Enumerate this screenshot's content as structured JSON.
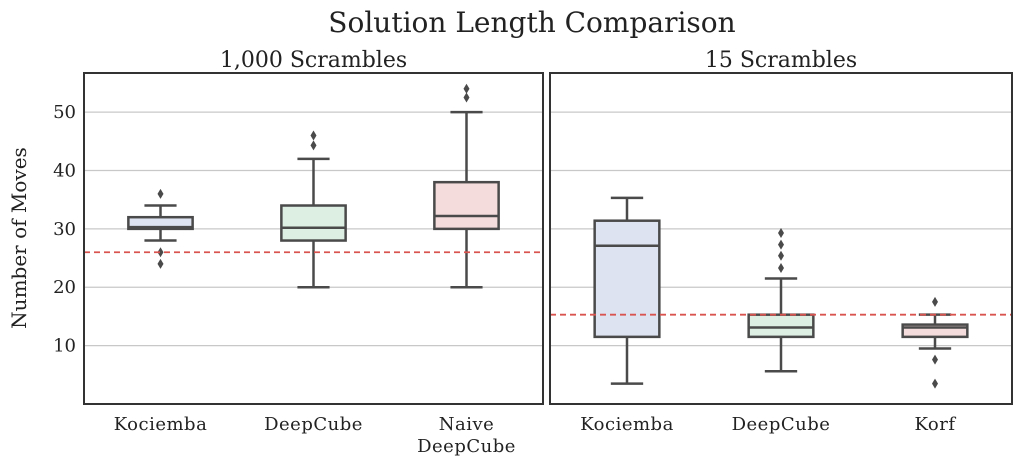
{
  "title": "Solution Length Comparison",
  "chart_data": [
    {
      "type": "box",
      "subtitle": "1,000 Scrambles",
      "y_label": "Number of Moves",
      "categories": [
        "Kociemba",
        "DeepCube",
        "Naive\nDeepCube"
      ],
      "colors": [
        "#dde3f0",
        "#ddeee3",
        "#f5dcdc"
      ],
      "boxes": [
        {
          "whislo": 28,
          "q1": 30,
          "med": 30.3,
          "q3": 32,
          "whishi": 34,
          "fliers": [
            36,
            26,
            24
          ]
        },
        {
          "whislo": 20,
          "q1": 28,
          "med": 30.2,
          "q3": 34,
          "whishi": 42,
          "fliers": [
            44.3,
            46
          ]
        },
        {
          "whislo": 20,
          "q1": 30,
          "med": 32.2,
          "q3": 38,
          "whishi": 50,
          "fliers": [
            52.5,
            54
          ]
        }
      ],
      "reference_line": {
        "value": 26,
        "color": "#d9534f"
      },
      "ylim": [
        0,
        56.7
      ],
      "yticks": [
        10,
        20,
        30,
        40,
        50
      ],
      "ytick_labels": true,
      "grid": true
    },
    {
      "type": "box",
      "subtitle": "15 Scrambles",
      "categories": [
        "Kociemba",
        "DeepCube",
        "Korf"
      ],
      "colors": [
        "#dde3f0",
        "#ddeee3",
        "#f5dcdc"
      ],
      "boxes": [
        {
          "whislo": 3.5,
          "q1": 11.5,
          "med": 27.1,
          "q3": 31.4,
          "whishi": 35.3,
          "fliers": []
        },
        {
          "whislo": 5.6,
          "q1": 11.5,
          "med": 13.1,
          "q3": 15.3,
          "whishi": 21.5,
          "fliers": [
            23.3,
            25.4,
            27.3,
            29.3
          ]
        },
        {
          "whislo": 9.5,
          "q1": 11.5,
          "med": 13.1,
          "q3": 13.6,
          "whishi": 15.3,
          "fliers": [
            17.5,
            7.6,
            3.5
          ]
        }
      ],
      "reference_line": {
        "value": 15.3,
        "color": "#d9534f"
      },
      "ylim": [
        0,
        56.7
      ],
      "yticks": [
        10,
        20,
        30,
        40,
        50
      ],
      "ytick_labels": false,
      "grid": true
    }
  ]
}
